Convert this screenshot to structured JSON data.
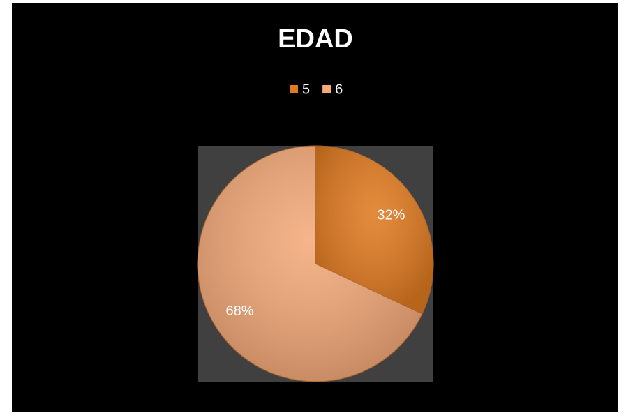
{
  "chart_data": {
    "type": "pie",
    "title": "EDAD",
    "categories": [
      "5",
      "6"
    ],
    "values": [
      32,
      68
    ],
    "value_labels": [
      "32%",
      "68%"
    ],
    "colors": [
      "#e07b22",
      "#f4aa7a"
    ],
    "legend": "top"
  }
}
